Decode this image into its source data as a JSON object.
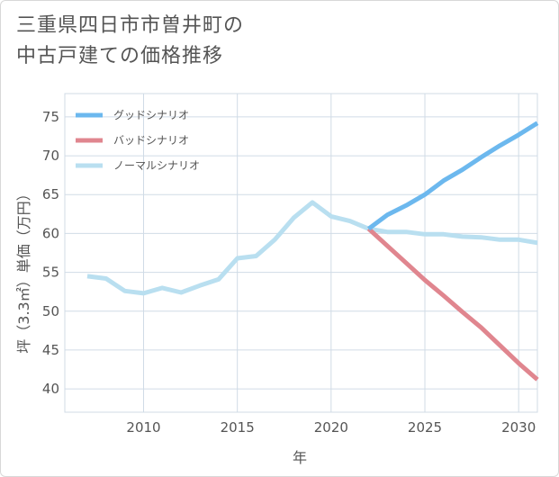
{
  "title": {
    "line1": "三重県四日市市曽井町の",
    "line2": "中古戸建ての価格推移"
  },
  "chart_data": {
    "type": "line",
    "xlabel": "年",
    "ylabel": "坪（3.3㎡）単価（万円）",
    "xlim": [
      2005.8,
      2031
    ],
    "ylim": [
      37,
      78
    ],
    "xticks": [
      2010,
      2015,
      2020,
      2025,
      2030
    ],
    "yticks": [
      40,
      45,
      50,
      55,
      60,
      65,
      70,
      75
    ],
    "grid": true,
    "legend_position": "top-left",
    "series": [
      {
        "name": "グッドシナリオ",
        "color": "#6cb8ee",
        "x": [
          2022,
          2023,
          2024,
          2025,
          2026,
          2027,
          2028,
          2029,
          2030,
          2031
        ],
        "y": [
          60.6,
          62.4,
          63.6,
          65.0,
          66.8,
          68.2,
          69.8,
          71.3,
          72.7,
          74.2
        ]
      },
      {
        "name": "バッドシナリオ",
        "color": "#e0868f",
        "x": [
          2022,
          2023,
          2024,
          2025,
          2026,
          2027,
          2028,
          2029,
          2030,
          2031
        ],
        "y": [
          60.6,
          58.4,
          56.2,
          54.0,
          52.0,
          49.9,
          47.9,
          45.6,
          43.3,
          41.2
        ]
      },
      {
        "name": "ノーマルシナリオ",
        "color": "#b9dff0",
        "x": [
          2007,
          2008,
          2009,
          2010,
          2011,
          2012,
          2013,
          2014,
          2015,
          2016,
          2017,
          2018,
          2019,
          2020,
          2021,
          2022,
          2023,
          2024,
          2025,
          2026,
          2027,
          2028,
          2029,
          2030,
          2031
        ],
        "y": [
          54.5,
          54.2,
          52.6,
          52.3,
          53.0,
          52.4,
          53.3,
          54.1,
          56.8,
          57.1,
          59.2,
          62.0,
          64.0,
          62.2,
          61.6,
          60.6,
          60.2,
          60.2,
          59.9,
          59.9,
          59.6,
          59.5,
          59.2,
          59.2,
          58.8
        ]
      }
    ]
  }
}
